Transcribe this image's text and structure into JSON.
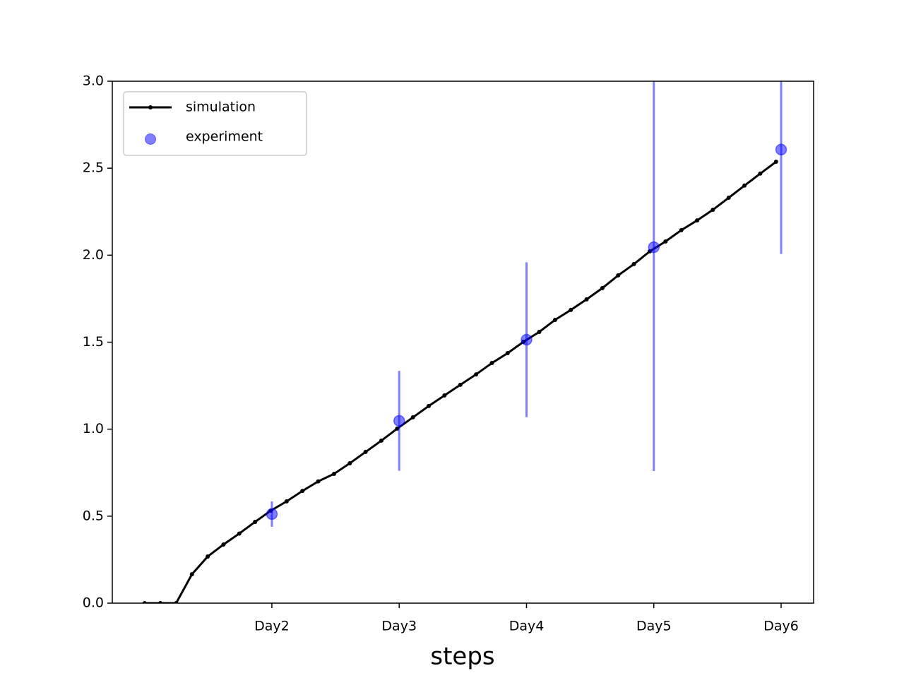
{
  "chart_data": {
    "type": "line",
    "x_label": "steps",
    "xlim": [
      0.7465,
      6.255
    ],
    "ylim": [
      0,
      3
    ],
    "xticks": [
      {
        "value": 2,
        "label": "Day2"
      },
      {
        "value": 3,
        "label": "Day3"
      },
      {
        "value": 4,
        "label": "Day4"
      },
      {
        "value": 5,
        "label": "Day5"
      },
      {
        "value": 6,
        "label": "Day6"
      }
    ],
    "yticks": [
      {
        "value": 0,
        "label": "0.0"
      },
      0.5,
      {
        "value": 1,
        "label": "1.0"
      },
      1.5,
      {
        "value": 2,
        "label": "2.0"
      },
      2.5,
      {
        "value": 3,
        "label": "3.0"
      }
    ],
    "grid": false,
    "legend": "upper left",
    "series": [
      {
        "name": "simulation",
        "type": "line",
        "color": "#000000",
        "x": [
          1,
          1.124,
          1.248,
          1.372,
          1.496,
          1.62,
          1.744,
          1.868,
          1.992,
          2.116,
          2.24,
          2.364,
          2.488,
          2.612,
          2.736,
          2.86,
          2.984,
          3.108,
          3.232,
          3.356,
          3.48,
          3.604,
          3.728,
          3.852,
          3.976,
          4.1,
          4.224,
          4.348,
          4.472,
          4.596,
          4.72,
          4.844,
          4.968,
          5.092,
          5.216,
          5.34,
          5.464,
          5.588,
          5.712,
          5.836,
          5.96
        ],
        "values": [
          0,
          0,
          0,
          0.166,
          0.268,
          0.337,
          0.4,
          0.467,
          0.532,
          0.585,
          0.645,
          0.7,
          0.743,
          0.804,
          0.869,
          0.934,
          1.003,
          1.068,
          1.133,
          1.194,
          1.255,
          1.315,
          1.38,
          1.437,
          1.502,
          1.559,
          1.628,
          1.685,
          1.746,
          1.811,
          1.884,
          1.949,
          2.022,
          2.079,
          2.144,
          2.2,
          2.261,
          2.33,
          2.4,
          2.469,
          2.537
        ]
      },
      {
        "name": "experiment",
        "type": "scatter",
        "color": "#0000ff",
        "alpha": 0.5,
        "x": [
          2,
          3,
          4,
          5,
          6
        ],
        "values": [
          0.512,
          1.048,
          1.514,
          2.046,
          2.607
        ],
        "errors": [
          0.073,
          0.287,
          0.445,
          1.287,
          0.6
        ]
      }
    ]
  }
}
